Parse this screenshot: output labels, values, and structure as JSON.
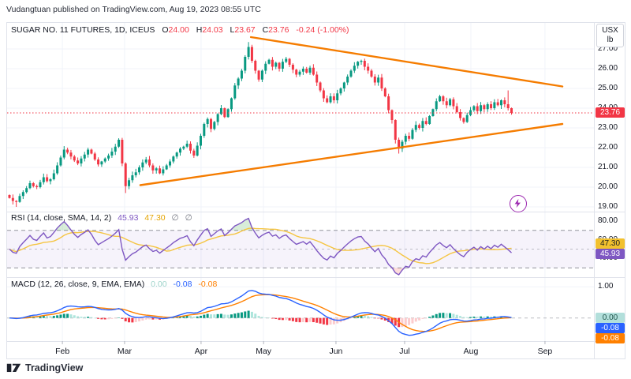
{
  "credit_line": "Vudangtuan published on TradingView.com, Aug 19, 2023 08:55 UTC",
  "symbol_bar": {
    "title": "SUGAR NO. 11 FUTURES, 1D, ICEUS",
    "o_label": "O",
    "open": "24.00",
    "h_label": "H",
    "high": "24.03",
    "l_label": "L",
    "low": "23.67",
    "c_label": "C",
    "close": "23.76",
    "change": "-0.24 (-1.00%)"
  },
  "price_axis": {
    "unit_line1": "USX",
    "unit_line2": "lb",
    "tick_labels": [
      "27.00",
      "26.00",
      "25.00",
      "24.00",
      "23.00",
      "22.00",
      "21.00",
      "20.00",
      "19.00"
    ],
    "last_price_label": "23.76"
  },
  "rsi_panel": {
    "legend_title": "RSI (14, close, SMA, 14, 2)",
    "value": "45.93",
    "ma_value": "47.30",
    "empty1": "∅",
    "empty2": "∅",
    "tick_labels": [
      "80.00",
      "60.00",
      "40.00"
    ]
  },
  "macd_panel": {
    "legend_title": "MACD (12, 26, close, 9, EMA, EMA)",
    "hist_value": "0.00",
    "macd_value": "-0.08",
    "signal_value": "-0.08",
    "tick_labels": [
      "1.00"
    ]
  },
  "time_axis": {
    "months": [
      "Feb",
      "Mar",
      "Apr",
      "May",
      "Jun",
      "Jul",
      "Aug",
      "Sep"
    ]
  },
  "footer": {
    "logo_text": "TradingView"
  },
  "colors": {
    "up": "#089981",
    "down": "#F23645",
    "trendline": "#F57C00",
    "rsi_line": "#7E57C2",
    "rsi_ma": "#F5C542",
    "macd_line": "#2962FF",
    "signal_line": "#FF8000",
    "hist_up": "#089981",
    "hist_up_weak": "#ACE5DC",
    "hist_down": "#F23645",
    "hist_down_weak": "#FCCBCD",
    "badge_price": "#F23645",
    "badge_rsi_ma": "#F2C12E",
    "badge_rsi": "#7E57C2",
    "badge_hist": "#B2DFDB",
    "badge_hist_text": "#22574D",
    "badge_macd": "#2962FF",
    "badge_signal": "#FF8000",
    "boost": "#9C27B0",
    "grid": "#f0f3fa",
    "separator": "#e0e3eb",
    "dashed": "#787b86"
  },
  "chart_data": {
    "type": "candlestick",
    "title": "SUGAR NO. 11 FUTURES, 1D, ICEUS",
    "unit": "USX/lb",
    "price_ylim": [
      18.84,
      28.36
    ],
    "price_ticks": [
      27,
      26,
      25,
      24,
      23,
      22,
      21,
      20,
      19
    ],
    "last_price": 23.76,
    "candles": {
      "closes": [
        19.45,
        19.3,
        19.25,
        19.55,
        19.75,
        19.95,
        20.2,
        20.05,
        20.0,
        20.25,
        20.5,
        20.3,
        20.4,
        20.7,
        21.1,
        21.5,
        21.9,
        21.75,
        21.55,
        21.35,
        21.2,
        21.45,
        21.65,
        21.9,
        21.7,
        21.4,
        21.15,
        21.3,
        21.45,
        21.6,
        21.8,
        22.05,
        22.4,
        21.2,
        20.05,
        20.35,
        20.6,
        20.75,
        21.0,
        21.25,
        21.4,
        21.1,
        20.85,
        20.95,
        20.7,
        20.9,
        21.1,
        21.3,
        21.55,
        21.75,
        21.95,
        22.05,
        22.2,
        21.85,
        21.6,
        22.1,
        22.6,
        23.2,
        23.45,
        22.95,
        23.3,
        23.7,
        24.0,
        23.55,
        23.95,
        24.5,
        25.15,
        25.5,
        25.9,
        26.6,
        27.1,
        26.4,
        25.9,
        25.45,
        25.9,
        26.25,
        26.45,
        26.1,
        26.3,
        26.0,
        26.35,
        26.5,
        26.2,
        25.95,
        25.7,
        25.85,
        26.0,
        25.8,
        26.05,
        25.7,
        25.3,
        24.9,
        24.5,
        24.3,
        24.6,
        24.4,
        24.75,
        25.0,
        25.3,
        25.6,
        25.9,
        26.15,
        26.35,
        26.4,
        26.1,
        25.9,
        25.6,
        25.3,
        25.55,
        25.0,
        24.6,
        23.9,
        23.4,
        22.4,
        21.95,
        22.3,
        22.6,
        22.45,
        22.9,
        23.15,
        23.0,
        23.35,
        23.2,
        23.6,
        23.95,
        24.35,
        24.6,
        24.35,
        24.15,
        24.45,
        24.1,
        23.8,
        23.5,
        23.3,
        23.65,
        23.9,
        24.1,
        23.85,
        24.15,
        23.95,
        24.2,
        24.0,
        24.3,
        24.15,
        24.4,
        24.2,
        24.0,
        23.76
      ],
      "last": {
        "open": 24.0,
        "high": 24.03,
        "low": 23.67,
        "close": 23.76
      },
      "wick_overrides": {
        "2": {
          "low": 19.0
        },
        "34": {
          "low": 19.7
        },
        "70": {
          "high": 27.35
        },
        "114": {
          "low": 21.7
        },
        "146": {
          "high": 24.9
        }
      }
    },
    "months": {
      "labels": [
        "Feb",
        "Mar",
        "Apr",
        "May",
        "Jun",
        "Jul",
        "Aug",
        "Sep"
      ],
      "bar_indices": [
        15.5,
        33.7,
        56.1,
        74.4,
        95.6,
        115.7,
        135.1,
        156.8
      ]
    },
    "trendlines": [
      {
        "name": "upper",
        "i1": 70.7,
        "p1": 27.6,
        "i2": 161.9,
        "p2": 25.1
      },
      {
        "name": "lower",
        "i1": 38.3,
        "p1": 20.1,
        "i2": 161.9,
        "p2": 23.2
      }
    ],
    "rsi": {
      "length": 14,
      "source": "close",
      "smoothing": "SMA",
      "smoothing_length": 14,
      "value": 45.93,
      "ma_value": 47.3,
      "ylim": [
        21,
        89.1
      ],
      "bands": [
        70,
        30
      ],
      "mid": 50,
      "ticks": [
        80,
        60,
        40
      ]
    },
    "macd": {
      "fast": 12,
      "slow": 26,
      "signal": 9,
      "value": -0.08,
      "signal_value": -0.08,
      "hist_value": 0.0,
      "ylim": [
        -0.744,
        1.287
      ],
      "ticks": [
        1.0
      ]
    }
  }
}
